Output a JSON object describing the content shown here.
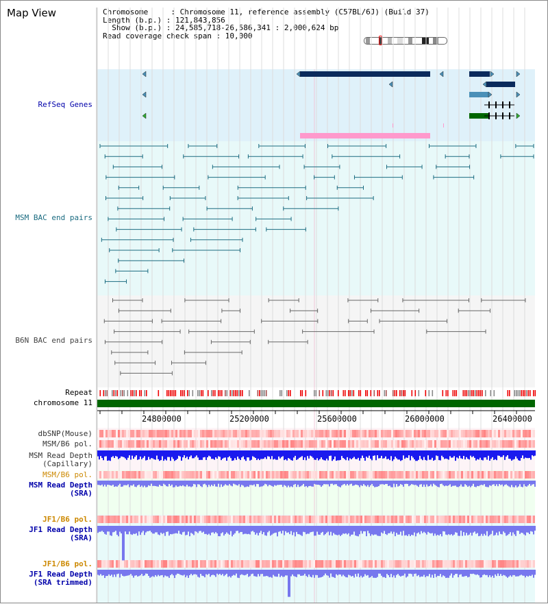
{
  "title": "Map View",
  "info": {
    "chromosome_label": "Chromosome     : Chromosome 11, reference assembly (C57BL/6J) (Build 37)",
    "length_label": "Length (b.p.) : 121,843,856",
    "show_label": "  Show (b.p.) : 24,585,718-26,586,341 : 2,000,624 bp",
    "coverage_label": "Read coverage check span : 10,000"
  },
  "tracks": {
    "refseq": "RefSeq Genes",
    "msm_bac": "MSM BAC end pairs",
    "b6n_bac": "B6N BAC end pairs",
    "repeat": "Repeat",
    "chromosome": "chromosome 11",
    "dbsnp": "dbSNP(Mouse)",
    "msm_pol_1": "MSM/B6 pol.",
    "msm_depth_cap_1": "MSM Read Depth",
    "msm_depth_cap_2": "(Capillary)",
    "msm_pol_2": "MSM/B6 pol.",
    "msm_depth_sra_1": "MSM Read Depth",
    "msm_depth_sra_2": "(SRA)",
    "jf1_pol_1": "JF1/B6 pol.",
    "jf1_depth_sra_1": "JF1 Read Depth",
    "jf1_depth_sra_2": "(SRA)",
    "jf1_pol_2": "JF1/B6 pol.",
    "jf1_depth_trim_1": "JF1 Read Depth",
    "jf1_depth_trim_2": "(SRA trimmed)"
  },
  "axis": {
    "ticks": [
      "24800000",
      "25200000",
      "25600000",
      "26000000",
      "26400000"
    ]
  },
  "colors": {
    "refseq_bg": "#dff1fa",
    "msm_bg": "#e8f9f9",
    "b6n_bg": "#f5f5f5",
    "gene_dark": "#0a2a5c",
    "gene_light": "#4a90b8",
    "gene_green": "#006600",
    "gene_pink": "#ff99cc",
    "msm_pair": "#1a6b80",
    "b6n_pair": "#666666",
    "chromosome_bar": "#006600",
    "depth_cap": "#1a1aee",
    "depth_sra": "#7777ee"
  }
}
